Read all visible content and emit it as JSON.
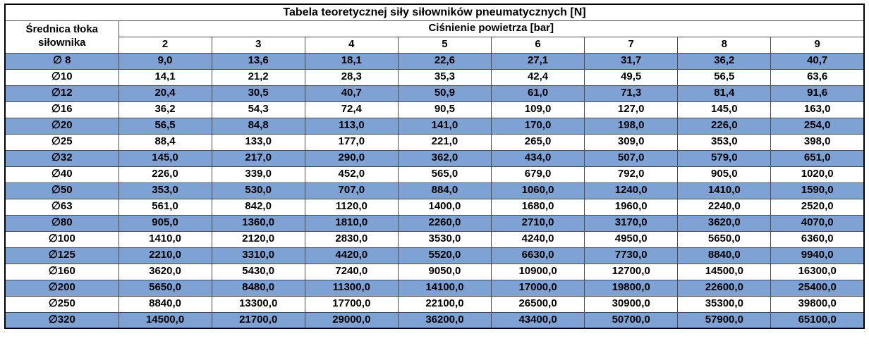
{
  "chart_data": {
    "type": "table",
    "title": "Tabela teoretycznej siły siłowników pneumatycznych [N]",
    "row_label": "Średnica tłoka siłownika",
    "column_group_label": "Ciśnienie powietrza [bar]",
    "columns": [
      "2",
      "3",
      "4",
      "5",
      "6",
      "7",
      "8",
      "9"
    ],
    "rows": [
      {
        "diameter": "∅ 8",
        "values": [
          "9,0",
          "13,6",
          "18,1",
          "22,6",
          "27,1",
          "31,7",
          "36,2",
          "40,7"
        ]
      },
      {
        "diameter": "∅10",
        "values": [
          "14,1",
          "21,2",
          "28,3",
          "35,3",
          "42,4",
          "49,5",
          "56,5",
          "63,6"
        ]
      },
      {
        "diameter": "∅12",
        "values": [
          "20,4",
          "30,5",
          "40,7",
          "50,9",
          "61,0",
          "71,3",
          "81,4",
          "91,6"
        ]
      },
      {
        "diameter": "∅16",
        "values": [
          "36,2",
          "54,3",
          "72,4",
          "90,5",
          "109,0",
          "127,0",
          "145,0",
          "163,0"
        ]
      },
      {
        "diameter": "∅20",
        "values": [
          "56,5",
          "84,8",
          "113,0",
          "141,0",
          "170,0",
          "198,0",
          "226,0",
          "254,0"
        ]
      },
      {
        "diameter": "∅25",
        "values": [
          "88,4",
          "133,0",
          "177,0",
          "221,0",
          "265,0",
          "309,0",
          "353,0",
          "398,0"
        ]
      },
      {
        "diameter": "∅32",
        "values": [
          "145,0",
          "217,0",
          "290,0",
          "362,0",
          "434,0",
          "507,0",
          "579,0",
          "651,0"
        ]
      },
      {
        "diameter": "∅40",
        "values": [
          "226,0",
          "339,0",
          "452,0",
          "565,0",
          "679,0",
          "792,0",
          "905,0",
          "1020,0"
        ]
      },
      {
        "diameter": "∅50",
        "values": [
          "353,0",
          "530,0",
          "707,0",
          "884,0",
          "1060,0",
          "1240,0",
          "1410,0",
          "1590,0"
        ]
      },
      {
        "diameter": "∅63",
        "values": [
          "561,0",
          "842,0",
          "1120,0",
          "1400,0",
          "1680,0",
          "1960,0",
          "2240,0",
          "2520,0"
        ]
      },
      {
        "diameter": "∅80",
        "values": [
          "905,0",
          "1360,0",
          "1810,0",
          "2260,0",
          "2710,0",
          "3170,0",
          "3620,0",
          "4070,0"
        ]
      },
      {
        "diameter": "∅100",
        "values": [
          "1410,0",
          "2120,0",
          "2830,0",
          "3530,0",
          "4240,0",
          "4950,0",
          "5650,0",
          "6360,0"
        ]
      },
      {
        "diameter": "∅125",
        "values": [
          "2210,0",
          "3310,0",
          "4420,0",
          "5520,0",
          "6630,0",
          "7730,0",
          "8840,0",
          "9940,0"
        ]
      },
      {
        "diameter": "∅160",
        "values": [
          "3620,0",
          "5430,0",
          "7240,0",
          "9050,0",
          "10900,0",
          "12700,0",
          "14500,0",
          "16300,0"
        ]
      },
      {
        "diameter": "∅200",
        "values": [
          "5650,0",
          "8480,0",
          "11300,0",
          "14100,0",
          "17000,0",
          "19800,0",
          "22600,0",
          "25400,0"
        ]
      },
      {
        "diameter": "∅250",
        "values": [
          "8840,0",
          "13300,0",
          "17700,0",
          "22100,0",
          "26500,0",
          "30900,0",
          "35300,0",
          "39800,0"
        ]
      },
      {
        "diameter": "∅320",
        "values": [
          "14500,0",
          "21700,0",
          "29000,0",
          "36200,0",
          "43400,0",
          "50700,0",
          "57900,0",
          "65100,0"
        ]
      }
    ],
    "layout": {
      "striped_rows": "first data row blue, alternating",
      "header_rows": 2,
      "grid": true
    }
  },
  "colors": {
    "row_fill_blue": "#7EA2D4",
    "row_fill_white": "#FFFFFF",
    "border_inner": "#4D4D4D",
    "border_outer": "#000000",
    "text": "#000000"
  }
}
